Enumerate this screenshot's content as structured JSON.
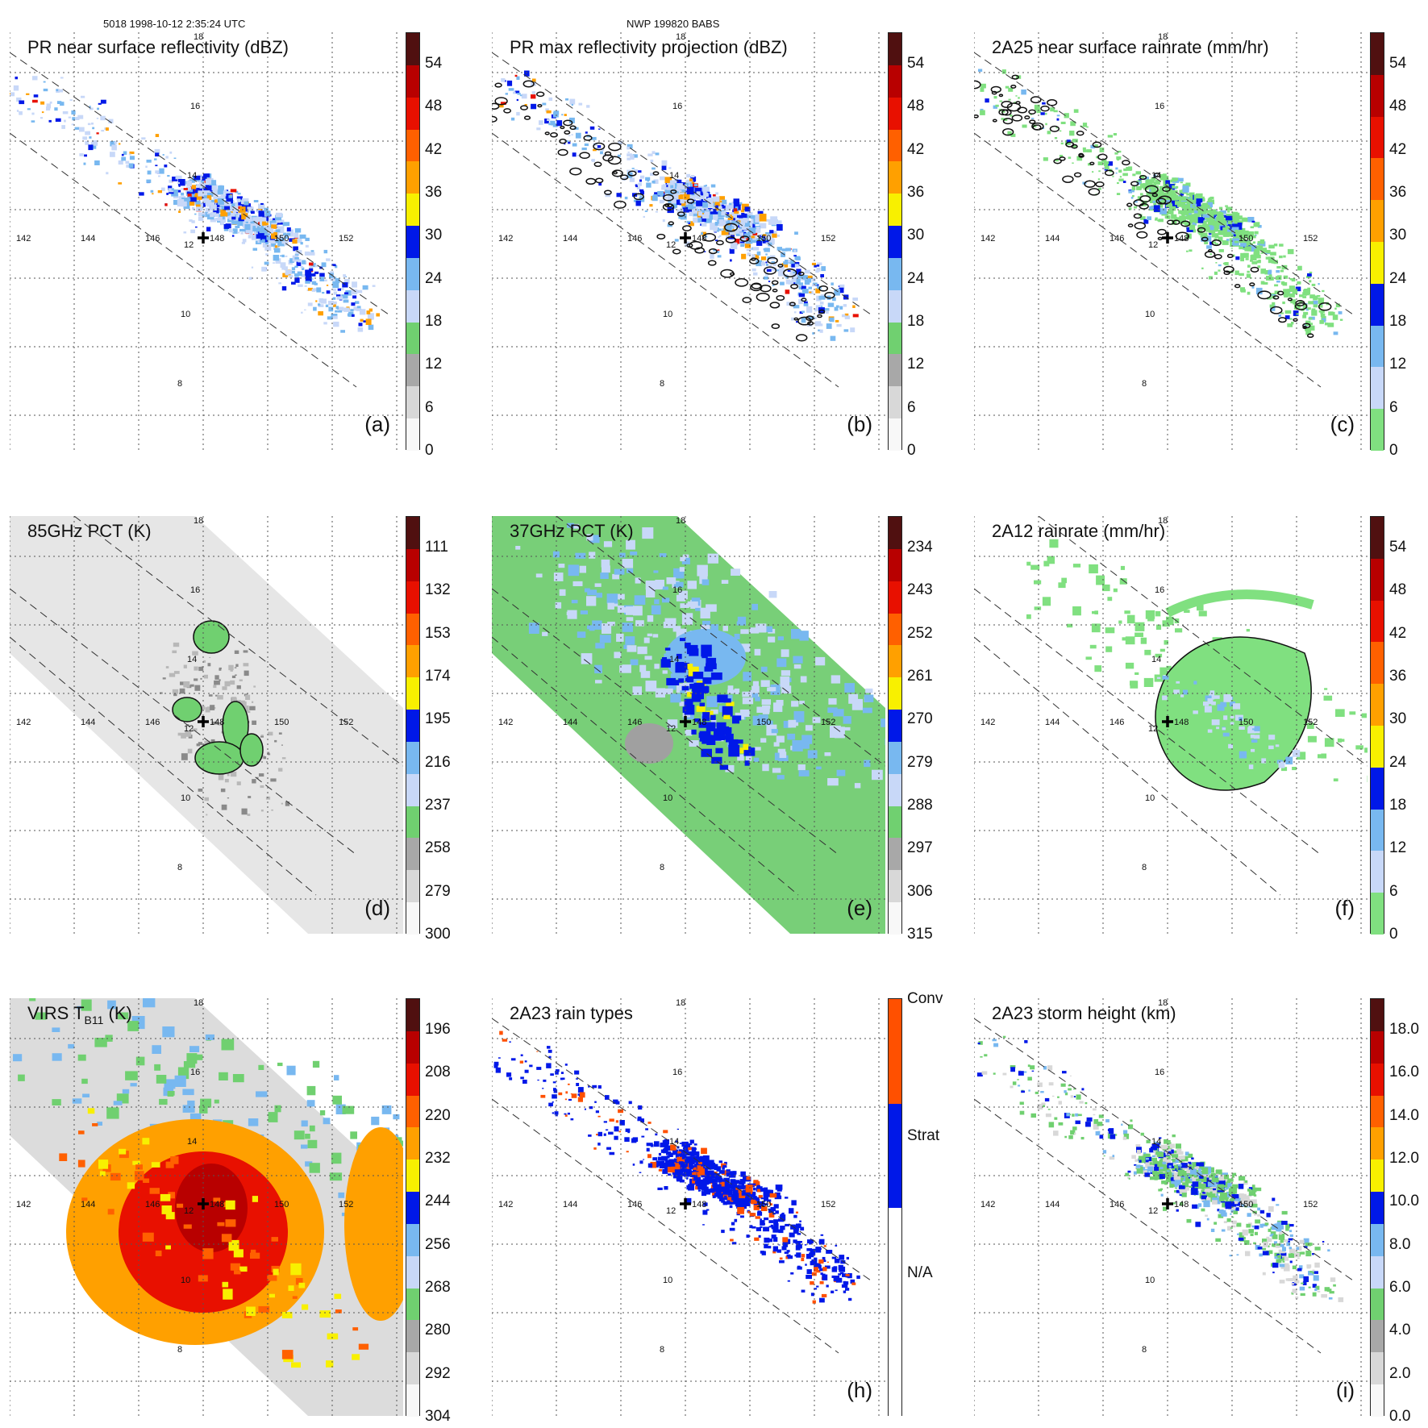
{
  "header": {
    "orbit_time": "5018 1998-10-12 2:35:24 UTC",
    "storm_id": "NWP 199820 BABS"
  },
  "axes": {
    "lon_labels": [
      "142",
      "144",
      "146",
      "148",
      "150",
      "152"
    ],
    "lat_labels": [
      "18",
      "16",
      "14",
      "12",
      "10",
      "8"
    ]
  },
  "panels": [
    {
      "id": "a",
      "title": "PR near surface reflectivity (dBZ)",
      "tag": "(a)",
      "cmap": "dbz",
      "style": "swath",
      "colorbar": {
        "labels": [
          "54",
          "48",
          "42",
          "36",
          "30",
          "24",
          "18",
          "12",
          "6",
          "0"
        ]
      }
    },
    {
      "id": "b",
      "title": "PR max reflectivity projection (dBZ)",
      "tag": "(b)",
      "cmap": "dbz",
      "style": "swath-contour",
      "colorbar": {
        "labels": [
          "54",
          "48",
          "42",
          "36",
          "30",
          "24",
          "18",
          "12",
          "6",
          "0"
        ]
      }
    },
    {
      "id": "c",
      "title": "2A25 near surface rainrate (mm/hr)",
      "tag": "(c)",
      "cmap": "rain",
      "style": "swath-rain",
      "colorbar": {
        "labels": [
          "54",
          "48",
          "42",
          "36",
          "30",
          "24",
          "18",
          "12",
          "6",
          "0"
        ]
      }
    },
    {
      "id": "d",
      "title": "85GHz PCT (K)",
      "tag": "(d)",
      "cmap": "pct85",
      "style": "wide-gray",
      "colorbar": {
        "labels": [
          "111",
          "132",
          "153",
          "174",
          "195",
          "216",
          "237",
          "258",
          "279",
          "300"
        ]
      }
    },
    {
      "id": "e",
      "title": "37GHz PCT (K)",
      "tag": "(e)",
      "cmap": "pct37",
      "style": "wide-green",
      "colorbar": {
        "labels": [
          "234",
          "243",
          "252",
          "261",
          "270",
          "279",
          "288",
          "297",
          "306",
          "315"
        ]
      }
    },
    {
      "id": "f",
      "title": "2A12 rainrate (mm/hr)",
      "tag": "(f)",
      "cmap": "rain",
      "style": "wide-rain",
      "colorbar": {
        "labels": [
          "54",
          "48",
          "42",
          "36",
          "30",
          "24",
          "18",
          "12",
          "6",
          "0"
        ]
      }
    },
    {
      "id": "g",
      "title_main": "VIRS T",
      "title_sub": "B11",
      "title_unit": " (K)",
      "tag": "",
      "cmap": "ir",
      "style": "wide-ir",
      "colorbar": {
        "labels": [
          "196",
          "208",
          "220",
          "232",
          "244",
          "256",
          "268",
          "280",
          "292",
          "304"
        ]
      }
    },
    {
      "id": "h",
      "title": "2A23 rain types",
      "tag": "(h)",
      "cmap": "types",
      "style": "swath-types",
      "colorbar": {
        "labels": [
          "Conv",
          "Strat",
          "N/A"
        ]
      }
    },
    {
      "id": "i",
      "title": "2A23 storm height (km)",
      "tag": "(i)",
      "cmap": "height",
      "style": "swath-height",
      "colorbar": {
        "labels": [
          "18.0",
          "16.0",
          "14.0",
          "12.0",
          "10.0",
          "8.0",
          "6.0",
          "4.0",
          "2.0",
          "0.0"
        ]
      }
    }
  ],
  "colormaps": {
    "dbz": [
      "#f8f8f8",
      "#d8d8d8",
      "#a8a8a8",
      "#70d070",
      "#c8d8f8",
      "#78b8f0",
      "#0018e8",
      "#f8f000",
      "#ffa000",
      "#ff6000",
      "#e81000",
      "#b80000",
      "#501010"
    ],
    "rain": [
      "#80e080",
      "#c8d8f8",
      "#78b8f0",
      "#0018e8",
      "#f8f000",
      "#ffa000",
      "#ff6000",
      "#e81000",
      "#b80000",
      "#501010"
    ],
    "pct85": [
      "#f8f8f8",
      "#d8d8d8",
      "#a8a8a8",
      "#70d070",
      "#c8d8f8",
      "#78b8f0",
      "#0018e8",
      "#f8f000",
      "#ffa000",
      "#ff6000",
      "#e81000",
      "#b80000",
      "#501010"
    ],
    "pct37": [
      "#f8f8f8",
      "#d8d8d8",
      "#a8a8a8",
      "#70d070",
      "#c8d8f8",
      "#78b8f0",
      "#0018e8",
      "#f8f000",
      "#ffa000",
      "#ff6000",
      "#e81000",
      "#b80000",
      "#501010"
    ],
    "ir": [
      "#f8f8f8",
      "#d8d8d8",
      "#a8a8a8",
      "#70d070",
      "#c8d8f8",
      "#78b8f0",
      "#0018e8",
      "#f8f000",
      "#ffa000",
      "#ff6000",
      "#e81000",
      "#b80000",
      "#501010"
    ],
    "types": [
      "#ffffff",
      "#0018e8",
      "#ff5000"
    ],
    "height": [
      "#f8f8f8",
      "#d8d8d8",
      "#a8a8a8",
      "#70d070",
      "#c8d8f8",
      "#78b8f0",
      "#0018e8",
      "#f8f000",
      "#ffa000",
      "#ff6000",
      "#e81000",
      "#b80000",
      "#501010"
    ]
  }
}
